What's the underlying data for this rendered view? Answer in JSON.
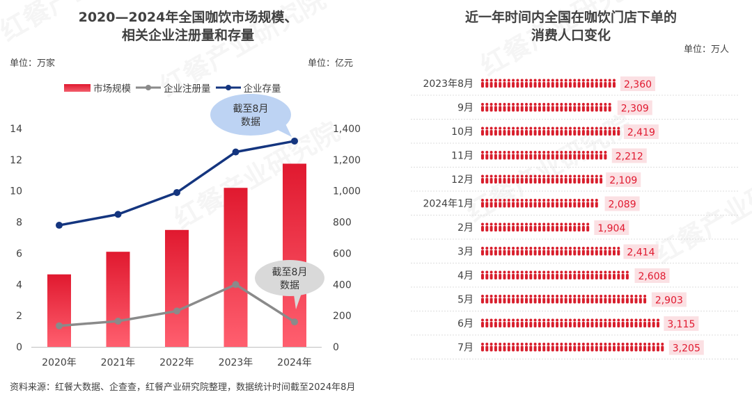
{
  "footer": "资料来源：红餐大数据、企查查，红餐产业研究院整理，数据统计时间截至2024年8月",
  "watermark_text": "红餐产业研究院",
  "chart_data": [
    {
      "type": "bar",
      "title_lines": [
        "2020—2024年全国咖饮市场规模、",
        "相关企业注册量和存量"
      ],
      "unit_left": "单位：万家",
      "unit_right": "单位：亿元",
      "categories": [
        "2020年",
        "2021年",
        "2022年",
        "2023年",
        "2024年"
      ],
      "series": [
        {
          "name": "市场规模",
          "kind": "bar",
          "axis": "right",
          "values": [
            465,
            610,
            750,
            1020,
            1175
          ],
          "color": "#e0192f"
        },
        {
          "name": "企业注册量",
          "kind": "line",
          "axis": "left",
          "values": [
            1.35,
            1.65,
            2.3,
            4.0,
            1.6
          ],
          "color": "#8a8a8a"
        },
        {
          "name": "企业存量",
          "kind": "line",
          "axis": "left",
          "values": [
            7.8,
            8.5,
            9.9,
            12.5,
            13.2
          ],
          "color": "#14357f"
        }
      ],
      "left_axis": {
        "ticks": [
          "0",
          "2",
          "4",
          "6",
          "8",
          "10",
          "12",
          "14"
        ],
        "range": [
          0,
          14
        ]
      },
      "right_axis": {
        "ticks": [
          "0",
          "200",
          "400",
          "600",
          "800",
          "1,000",
          "1,200",
          "1,400"
        ],
        "range": [
          0,
          1400
        ]
      },
      "annotations": [
        {
          "text_lines": [
            "截至8月",
            "数据"
          ],
          "target_series": "企业存量",
          "target_index": 4,
          "color": "#bdd3f3"
        },
        {
          "text_lines": [
            "截至8月",
            "数据"
          ],
          "target_series": "企业注册量",
          "target_index": 4,
          "color": "#d9d9d9"
        }
      ]
    },
    {
      "type": "bar",
      "orientation": "horizontal",
      "title_lines": [
        "近一年时间内全国在咖饮门店下单的",
        "消费人口变化"
      ],
      "unit": "单位：万人",
      "categories": [
        "2023年8月",
        "9月",
        "10月",
        "11月",
        "12月",
        "2024年1月",
        "2月",
        "3月",
        "4月",
        "5月",
        "6月",
        "7月"
      ],
      "values": [
        2360,
        2309,
        2419,
        2212,
        2109,
        2089,
        1904,
        2414,
        2608,
        2903,
        3115,
        3205
      ],
      "value_labels": [
        "2,360",
        "2,309",
        "2,419",
        "2,212",
        "2,109",
        "2,089",
        "1,904",
        "2,414",
        "2,608",
        "2,903",
        "3,115",
        "3,205"
      ],
      "color": "#d81e2c",
      "label_bg": "#fbe0e3",
      "label_color": "#e0192f"
    }
  ]
}
